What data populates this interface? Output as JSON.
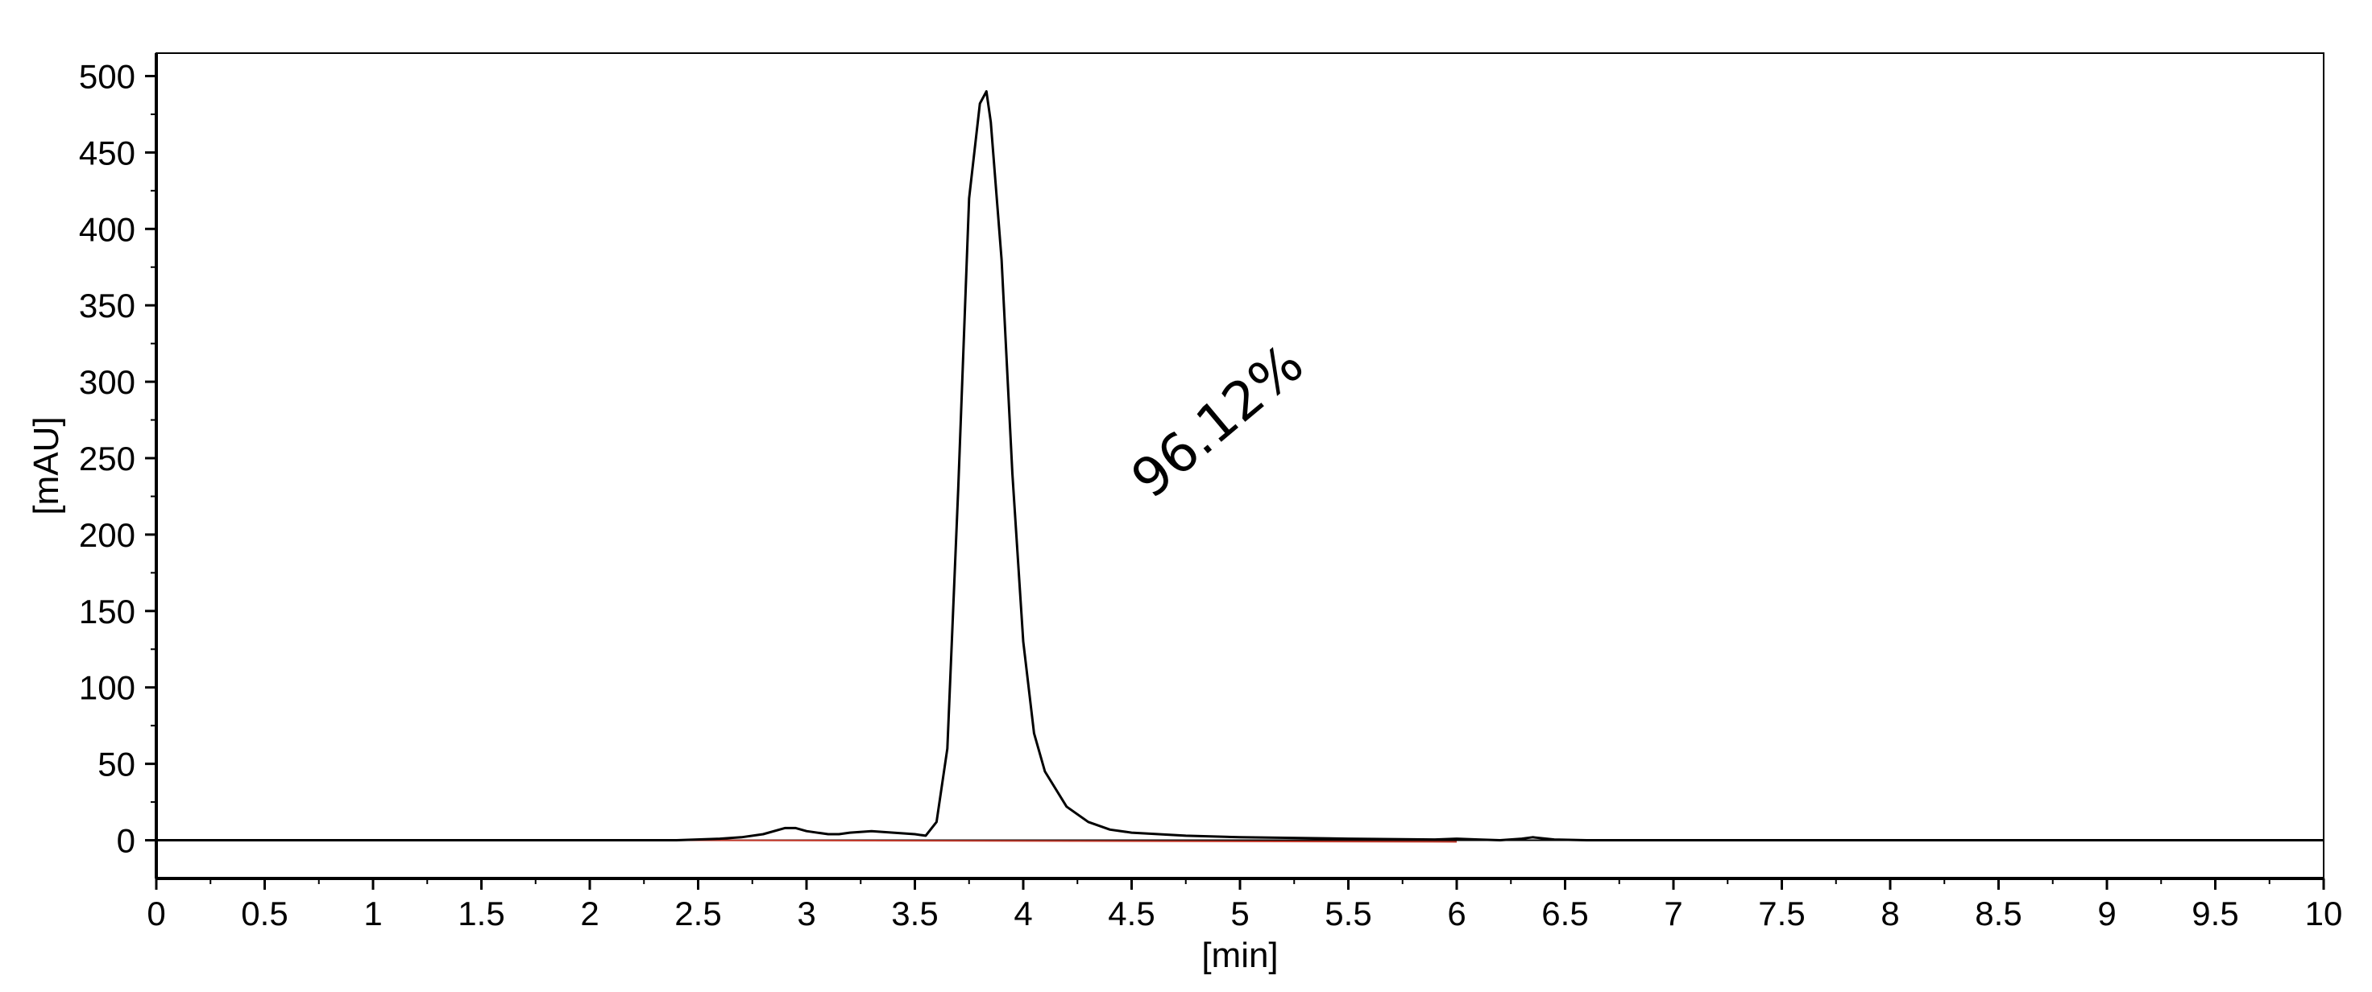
{
  "chart_data": {
    "type": "line",
    "title": "",
    "xlabel": "[min]",
    "ylabel": "[mAU]",
    "xlim": [
      0,
      10
    ],
    "ylim": [
      -25,
      515
    ],
    "x_ticks": [
      0,
      0.5,
      1,
      1.5,
      2,
      2.5,
      3,
      3.5,
      4,
      4.5,
      5,
      5.5,
      6,
      6.5,
      7,
      7.5,
      8,
      8.5,
      9,
      9.5,
      10
    ],
    "x_tick_labels": [
      "0",
      "0.5",
      "1",
      "1.5",
      "2",
      "2.5",
      "3",
      "3.5",
      "4",
      "4.5",
      "5",
      "5.5",
      "6",
      "6.5",
      "7",
      "7.5",
      "8",
      "8.5",
      "9",
      "9.5",
      "10"
    ],
    "y_ticks": [
      0,
      50,
      100,
      150,
      200,
      250,
      300,
      350,
      400,
      450,
      500
    ],
    "y_tick_labels": [
      "0",
      "50",
      "100",
      "150",
      "200",
      "250",
      "300",
      "350",
      "400",
      "450",
      "500"
    ],
    "grid": false,
    "legend": "none",
    "colors": {
      "trace": "#000000",
      "baseline": "#c0392b",
      "zero_line": "#000000"
    },
    "annotations": [
      {
        "text": "96.12%",
        "x": 4.95,
        "y": 265,
        "rotation": -40
      }
    ],
    "series": [
      {
        "x": [
          0,
          2.4,
          2.6,
          2.7,
          2.8,
          2.9,
          2.95,
          3.0,
          3.1,
          3.15,
          3.2,
          3.3,
          3.4,
          3.5,
          3.55,
          3.6,
          3.65,
          3.7,
          3.75,
          3.8,
          3.83,
          3.85,
          3.9,
          3.95,
          4.0,
          4.05,
          4.1,
          4.2,
          4.3,
          4.4,
          4.5,
          4.75,
          5.0,
          5.5,
          5.9,
          6.0,
          6.1,
          6.2,
          6.3,
          6.35,
          6.45,
          6.6,
          7,
          8,
          9,
          10
        ],
        "y": [
          0,
          0,
          1,
          2,
          4,
          8,
          8,
          6,
          4,
          4,
          5,
          6,
          5,
          4,
          3,
          12,
          60,
          230,
          420,
          482,
          490,
          470,
          380,
          240,
          130,
          70,
          45,
          22,
          12,
          7,
          5,
          3,
          2,
          1,
          0.5,
          1,
          0.5,
          0,
          1,
          2,
          0.5,
          0,
          0,
          0,
          0,
          0
        ]
      }
    ],
    "integration_baseline": {
      "x": [
        2.4,
        6.0
      ],
      "y": [
        0,
        -1
      ]
    }
  }
}
